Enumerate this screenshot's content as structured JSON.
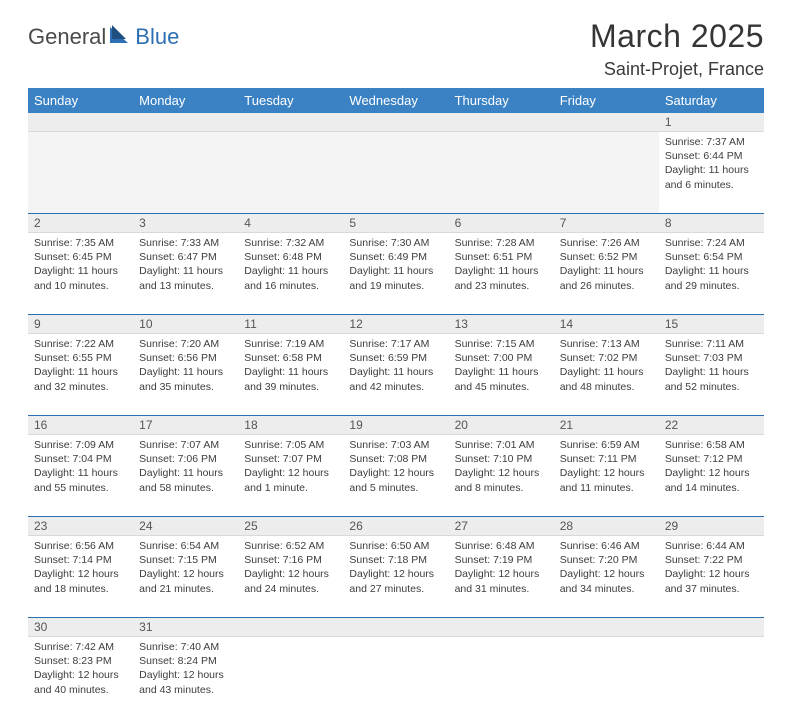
{
  "logo": {
    "part1": "General",
    "part2": "Blue"
  },
  "title": "March 2025",
  "location": "Saint-Projet, France",
  "colors": {
    "header_bg": "#3b82c4",
    "header_fg": "#ffffff",
    "daynum_bg": "#ededed",
    "row_divider": "#2d6fb3",
    "logo_blue": "#2d6fb3",
    "text": "#3a3a3a"
  },
  "columns": [
    "Sunday",
    "Monday",
    "Tuesday",
    "Wednesday",
    "Thursday",
    "Friday",
    "Saturday"
  ],
  "weeks": [
    {
      "nums": [
        "",
        "",
        "",
        "",
        "",
        "",
        "1"
      ],
      "cells": [
        "",
        "",
        "",
        "",
        "",
        "",
        "Sunrise: 7:37 AM\nSunset: 6:44 PM\nDaylight: 11 hours and 6 minutes."
      ]
    },
    {
      "nums": [
        "2",
        "3",
        "4",
        "5",
        "6",
        "7",
        "8"
      ],
      "cells": [
        "Sunrise: 7:35 AM\nSunset: 6:45 PM\nDaylight: 11 hours and 10 minutes.",
        "Sunrise: 7:33 AM\nSunset: 6:47 PM\nDaylight: 11 hours and 13 minutes.",
        "Sunrise: 7:32 AM\nSunset: 6:48 PM\nDaylight: 11 hours and 16 minutes.",
        "Sunrise: 7:30 AM\nSunset: 6:49 PM\nDaylight: 11 hours and 19 minutes.",
        "Sunrise: 7:28 AM\nSunset: 6:51 PM\nDaylight: 11 hours and 23 minutes.",
        "Sunrise: 7:26 AM\nSunset: 6:52 PM\nDaylight: 11 hours and 26 minutes.",
        "Sunrise: 7:24 AM\nSunset: 6:54 PM\nDaylight: 11 hours and 29 minutes."
      ]
    },
    {
      "nums": [
        "9",
        "10",
        "11",
        "12",
        "13",
        "14",
        "15"
      ],
      "cells": [
        "Sunrise: 7:22 AM\nSunset: 6:55 PM\nDaylight: 11 hours and 32 minutes.",
        "Sunrise: 7:20 AM\nSunset: 6:56 PM\nDaylight: 11 hours and 35 minutes.",
        "Sunrise: 7:19 AM\nSunset: 6:58 PM\nDaylight: 11 hours and 39 minutes.",
        "Sunrise: 7:17 AM\nSunset: 6:59 PM\nDaylight: 11 hours and 42 minutes.",
        "Sunrise: 7:15 AM\nSunset: 7:00 PM\nDaylight: 11 hours and 45 minutes.",
        "Sunrise: 7:13 AM\nSunset: 7:02 PM\nDaylight: 11 hours and 48 minutes.",
        "Sunrise: 7:11 AM\nSunset: 7:03 PM\nDaylight: 11 hours and 52 minutes."
      ]
    },
    {
      "nums": [
        "16",
        "17",
        "18",
        "19",
        "20",
        "21",
        "22"
      ],
      "cells": [
        "Sunrise: 7:09 AM\nSunset: 7:04 PM\nDaylight: 11 hours and 55 minutes.",
        "Sunrise: 7:07 AM\nSunset: 7:06 PM\nDaylight: 11 hours and 58 minutes.",
        "Sunrise: 7:05 AM\nSunset: 7:07 PM\nDaylight: 12 hours and 1 minute.",
        "Sunrise: 7:03 AM\nSunset: 7:08 PM\nDaylight: 12 hours and 5 minutes.",
        "Sunrise: 7:01 AM\nSunset: 7:10 PM\nDaylight: 12 hours and 8 minutes.",
        "Sunrise: 6:59 AM\nSunset: 7:11 PM\nDaylight: 12 hours and 11 minutes.",
        "Sunrise: 6:58 AM\nSunset: 7:12 PM\nDaylight: 12 hours and 14 minutes."
      ]
    },
    {
      "nums": [
        "23",
        "24",
        "25",
        "26",
        "27",
        "28",
        "29"
      ],
      "cells": [
        "Sunrise: 6:56 AM\nSunset: 7:14 PM\nDaylight: 12 hours and 18 minutes.",
        "Sunrise: 6:54 AM\nSunset: 7:15 PM\nDaylight: 12 hours and 21 minutes.",
        "Sunrise: 6:52 AM\nSunset: 7:16 PM\nDaylight: 12 hours and 24 minutes.",
        "Sunrise: 6:50 AM\nSunset: 7:18 PM\nDaylight: 12 hours and 27 minutes.",
        "Sunrise: 6:48 AM\nSunset: 7:19 PM\nDaylight: 12 hours and 31 minutes.",
        "Sunrise: 6:46 AM\nSunset: 7:20 PM\nDaylight: 12 hours and 34 minutes.",
        "Sunrise: 6:44 AM\nSunset: 7:22 PM\nDaylight: 12 hours and 37 minutes."
      ]
    },
    {
      "nums": [
        "30",
        "31",
        "",
        "",
        "",
        "",
        ""
      ],
      "cells": [
        "Sunrise: 7:42 AM\nSunset: 8:23 PM\nDaylight: 12 hours and 40 minutes.",
        "Sunrise: 7:40 AM\nSunset: 8:24 PM\nDaylight: 12 hours and 43 minutes.",
        "",
        "",
        "",
        "",
        ""
      ]
    }
  ]
}
